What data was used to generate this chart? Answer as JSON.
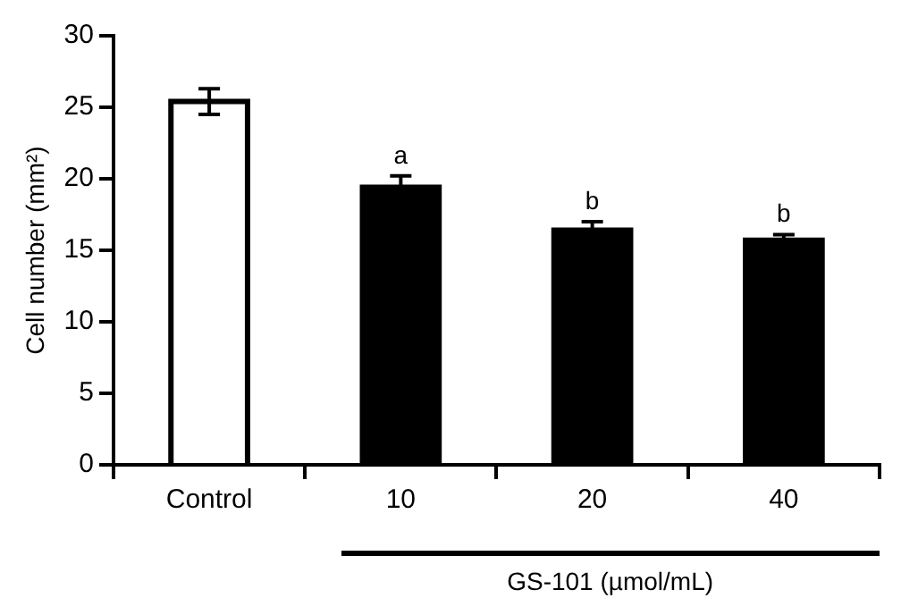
{
  "chart_data": {
    "type": "bar",
    "ylabel": "Cell number (mm²)",
    "xlabel": "GS-101 (µmol/mL)",
    "categories": [
      "Control",
      "10",
      "20",
      "40"
    ],
    "values": [
      25.4,
      19.4,
      16.4,
      15.7
    ],
    "colors": [
      "#ffffff",
      "#000000",
      "#000000",
      "#000000"
    ],
    "errors": [
      0.9,
      0.8,
      0.6,
      0.4
    ],
    "ylim": [
      0,
      30
    ],
    "yticks": [
      0,
      5,
      10,
      15,
      20,
      25,
      30
    ],
    "annotations": [
      {
        "text": "a",
        "x": "10",
        "y": 20.2
      },
      {
        "text": "b",
        "x": "20",
        "y": 17.0
      },
      {
        "text": "b",
        "x": "40",
        "y": 16.1
      }
    ],
    "grid": false,
    "legend": false
  }
}
